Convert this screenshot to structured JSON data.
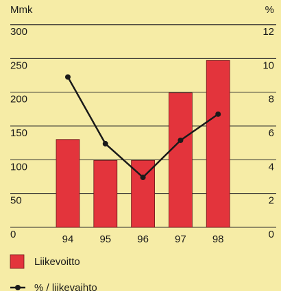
{
  "chart_data": {
    "type": "bar",
    "y_label": "Mmk",
    "y2_label": "%",
    "categories": [
      "94",
      "95",
      "96",
      "97",
      "98"
    ],
    "series": [
      {
        "name": "Liikevoitto",
        "type": "bar",
        "color": "#e3343c",
        "values": [
          130,
          99,
          99,
          199,
          247
        ]
      },
      {
        "name": "% / liikevaihto",
        "type": "line",
        "axis": "y2",
        "color": "#1a1a1a",
        "values": [
          8.9,
          4.95,
          2.96,
          5.15,
          6.7
        ]
      }
    ],
    "ylim": [
      0,
      300
    ],
    "yticks": [
      0,
      50,
      100,
      150,
      200,
      250,
      300
    ],
    "y2lim": [
      0,
      12
    ],
    "y2ticks": [
      0,
      2,
      4,
      6,
      8,
      10,
      12
    ],
    "grid": true
  }
}
